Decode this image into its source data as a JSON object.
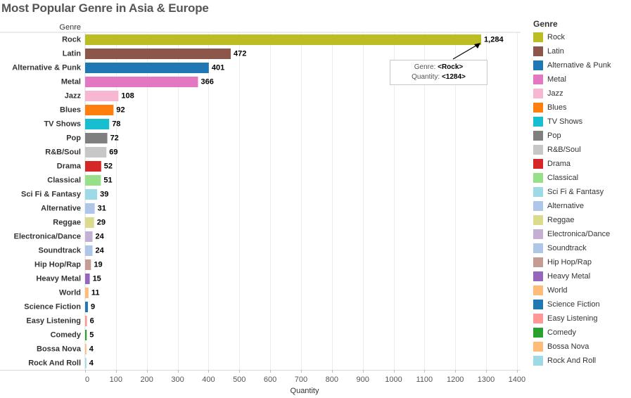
{
  "chart_data": {
    "type": "bar",
    "orientation": "horizontal",
    "title": "Most Popular Genre in Asia & Europe",
    "row_header": "Genre",
    "xlabel": "Quantity",
    "xlim": [
      0,
      1400
    ],
    "xticks": [
      "0",
      "100",
      "200",
      "300",
      "400",
      "500",
      "600",
      "700",
      "800",
      "900",
      "1000",
      "1100",
      "1200",
      "1300",
      "1400"
    ],
    "grid": true,
    "legend_title": "Genre",
    "legend_position": "right",
    "categories": [
      "Rock",
      "Latin",
      "Alternative & Punk",
      "Metal",
      "Jazz",
      "Blues",
      "TV Shows",
      "Pop",
      "R&B/Soul",
      "Drama",
      "Classical",
      "Sci Fi & Fantasy",
      "Alternative",
      "Reggae",
      "Electronica/Dance",
      "Soundtrack",
      "Hip Hop/Rap",
      "Heavy Metal",
      "World",
      "Science Fiction",
      "Easy Listening",
      "Comedy",
      "Bossa Nova",
      "Rock And Roll"
    ],
    "values": [
      1284,
      472,
      401,
      366,
      108,
      92,
      78,
      72,
      69,
      52,
      51,
      39,
      31,
      29,
      24,
      24,
      19,
      15,
      11,
      9,
      6,
      5,
      4,
      4
    ],
    "data_labels": [
      "1,284",
      "472",
      "401",
      "366",
      "108",
      "92",
      "78",
      "72",
      "69",
      "52",
      "51",
      "39",
      "31",
      "29",
      "24",
      "24",
      "19",
      "15",
      "11",
      "9",
      "6",
      "5",
      "4",
      "4"
    ],
    "colors": [
      "#bcbd22",
      "#8c564b",
      "#1f77b4",
      "#e377c2",
      "#f7b6d2",
      "#ff7f0e",
      "#17becf",
      "#7f7f7f",
      "#c7c7c7",
      "#d62728",
      "#98df8a",
      "#9edae5",
      "#aec7e8",
      "#dbdb8d",
      "#c5b0d5",
      "#aec7e8",
      "#c49c94",
      "#9467bd",
      "#ffbb78",
      "#1f77b4",
      "#ff9896",
      "#2ca02c",
      "#ffbb78",
      "#9edae5"
    ],
    "legend_entries": [
      "Rock",
      "Latin",
      "Alternative & Punk",
      "Metal",
      "Jazz",
      "Blues",
      "TV Shows",
      "Pop",
      "R&B/Soul",
      "Drama",
      "Classical",
      "Sci Fi & Fantasy",
      "Alternative",
      "Reggae",
      "Electronica/Dance",
      "Soundtrack",
      "Hip Hop/Rap",
      "Heavy Metal",
      "World",
      "Science Fiction",
      "Easy Listening",
      "Comedy",
      "Bossa Nova",
      "Rock And Roll"
    ],
    "annotation": {
      "target": "Rock",
      "genre_label": "Genre:",
      "genre_value": "<Rock>",
      "quantity_label": "Quantity:",
      "quantity_value": "<1284>"
    }
  }
}
